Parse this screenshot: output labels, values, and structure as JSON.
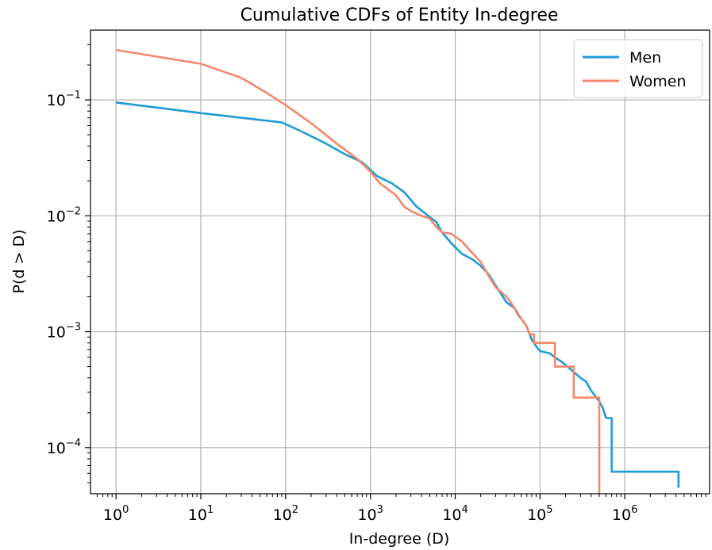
{
  "chart_data": {
    "type": "line",
    "title": "Cumulative CDFs of Entity In-degree",
    "xlabel": "In-degree (D)",
    "ylabel": "P(d > D)",
    "x_scale": "log",
    "y_scale": "log",
    "xlim": [
      0.5,
      10000000
    ],
    "ylim": [
      4e-05,
      0.4
    ],
    "x_ticks": [
      {
        "base": "10",
        "exp": "0",
        "value": 1
      },
      {
        "base": "10",
        "exp": "1",
        "value": 10
      },
      {
        "base": "10",
        "exp": "2",
        "value": 100
      },
      {
        "base": "10",
        "exp": "3",
        "value": 1000
      },
      {
        "base": "10",
        "exp": "4",
        "value": 10000
      },
      {
        "base": "10",
        "exp": "5",
        "value": 100000
      },
      {
        "base": "10",
        "exp": "6",
        "value": 1000000
      }
    ],
    "y_ticks": [
      {
        "base": "10",
        "exp": "−4",
        "value": 0.0001
      },
      {
        "base": "10",
        "exp": "−3",
        "value": 0.001
      },
      {
        "base": "10",
        "exp": "−2",
        "value": 0.01
      },
      {
        "base": "10",
        "exp": "−1",
        "value": 0.1
      }
    ],
    "grid": true,
    "legend_position": "top-right",
    "series": [
      {
        "name": "Men",
        "color": "#1f9bd6",
        "points": [
          [
            1,
            0.095
          ],
          [
            10,
            0.077
          ],
          [
            90,
            0.064
          ],
          [
            150,
            0.054
          ],
          [
            300,
            0.042
          ],
          [
            500,
            0.034
          ],
          [
            800,
            0.029
          ],
          [
            1200,
            0.022
          ],
          [
            1800,
            0.019
          ],
          [
            2500,
            0.016
          ],
          [
            3500,
            0.012
          ],
          [
            5000,
            0.0098
          ],
          [
            6000,
            0.0088
          ],
          [
            7000,
            0.0072
          ],
          [
            9000,
            0.0058
          ],
          [
            12000,
            0.0047
          ],
          [
            16000,
            0.0042
          ],
          [
            20000,
            0.0037
          ],
          [
            25000,
            0.0031
          ],
          [
            30000,
            0.0025
          ],
          [
            35000,
            0.0021
          ],
          [
            40000,
            0.0018
          ],
          [
            50000,
            0.0016
          ],
          [
            55000,
            0.0014
          ],
          [
            65000,
            0.0012
          ],
          [
            70000,
            0.0011
          ],
          [
            80000,
            0.00085
          ],
          [
            90000,
            0.00075
          ],
          [
            100000,
            0.00068
          ],
          [
            130000,
            0.00065
          ],
          [
            150000,
            0.0006
          ],
          [
            180000,
            0.00055
          ],
          [
            250000,
            0.00045
          ],
          [
            300000,
            0.0004
          ],
          [
            350000,
            0.00037
          ],
          [
            400000,
            0.00031
          ],
          [
            500000,
            0.00025
          ],
          [
            550000,
            0.00022
          ],
          [
            600000,
            0.00018
          ],
          [
            700000,
            0.00018
          ],
          [
            700000,
            6.2e-05
          ],
          [
            4300000,
            6.2e-05
          ],
          [
            4300000,
            4.5e-05
          ]
        ]
      },
      {
        "name": "Women",
        "color": "#f4876b",
        "points": [
          [
            1,
            0.27
          ],
          [
            10,
            0.205
          ],
          [
            30,
            0.155
          ],
          [
            60,
            0.115
          ],
          [
            100,
            0.09
          ],
          [
            200,
            0.063
          ],
          [
            400,
            0.042
          ],
          [
            700,
            0.031
          ],
          [
            1000,
            0.024
          ],
          [
            1300,
            0.019
          ],
          [
            1600,
            0.017
          ],
          [
            2000,
            0.015
          ],
          [
            2500,
            0.012
          ],
          [
            3000,
            0.011
          ],
          [
            4000,
            0.01
          ],
          [
            5000,
            0.0095
          ],
          [
            6000,
            0.008
          ],
          [
            7000,
            0.0072
          ],
          [
            9000,
            0.007
          ],
          [
            12000,
            0.006
          ],
          [
            15000,
            0.005
          ],
          [
            20000,
            0.004
          ],
          [
            25000,
            0.003
          ],
          [
            30000,
            0.0024
          ],
          [
            35000,
            0.0022
          ],
          [
            40000,
            0.002
          ],
          [
            45000,
            0.0018
          ],
          [
            50000,
            0.0016
          ],
          [
            60000,
            0.0013
          ],
          [
            65000,
            0.0012
          ],
          [
            70000,
            0.0011
          ],
          [
            75000,
            0.00095
          ],
          [
            85000,
            0.00095
          ],
          [
            85000,
            0.0008
          ],
          [
            150000,
            0.0008
          ],
          [
            150000,
            0.0005
          ],
          [
            250000,
            0.0005
          ],
          [
            250000,
            0.00027
          ],
          [
            500000,
            0.00027
          ],
          [
            500000,
            4e-05
          ]
        ]
      }
    ]
  }
}
